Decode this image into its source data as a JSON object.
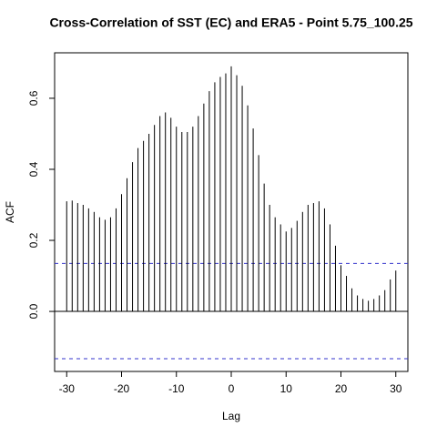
{
  "chart_data": {
    "type": "bar",
    "title": "Cross-Correlation of SST (EC) and ERA5 - Point 5.75_100.25",
    "xlabel": "Lag",
    "ylabel": "ACF",
    "x": [
      -30,
      -29,
      -28,
      -27,
      -26,
      -25,
      -24,
      -23,
      -22,
      -21,
      -20,
      -19,
      -18,
      -17,
      -16,
      -15,
      -14,
      -13,
      -12,
      -11,
      -10,
      -9,
      -8,
      -7,
      -6,
      -5,
      -4,
      -3,
      -2,
      -1,
      0,
      1,
      2,
      3,
      4,
      5,
      6,
      7,
      8,
      9,
      10,
      11,
      12,
      13,
      14,
      15,
      16,
      17,
      18,
      19,
      20,
      21,
      22,
      23,
      24,
      25,
      26,
      27,
      28,
      29,
      30
    ],
    "values": [
      0.31,
      0.312,
      0.305,
      0.3,
      0.29,
      0.28,
      0.265,
      0.258,
      0.265,
      0.29,
      0.33,
      0.375,
      0.42,
      0.46,
      0.48,
      0.5,
      0.525,
      0.55,
      0.56,
      0.545,
      0.52,
      0.505,
      0.505,
      0.52,
      0.55,
      0.585,
      0.62,
      0.645,
      0.66,
      0.67,
      0.69,
      0.665,
      0.635,
      0.58,
      0.515,
      0.44,
      0.36,
      0.3,
      0.265,
      0.245,
      0.225,
      0.235,
      0.255,
      0.28,
      0.3,
      0.305,
      0.31,
      0.29,
      0.245,
      0.185,
      0.13,
      0.1,
      0.065,
      0.045,
      0.035,
      0.03,
      0.035,
      0.045,
      0.06,
      0.09,
      0.115
    ],
    "color": "#000000",
    "conf_limits": [
      0.135,
      -0.133
    ],
    "conf_color": "#3333cc",
    "xlim": [
      -32.2,
      32.2
    ],
    "ylim": [
      -0.169,
      0.728
    ],
    "xticks": [
      -30,
      -20,
      -10,
      0,
      10,
      20,
      30
    ],
    "yticks": [
      {
        "value": 0,
        "label": "0.0"
      },
      0.2,
      0.4,
      0.6
    ]
  }
}
